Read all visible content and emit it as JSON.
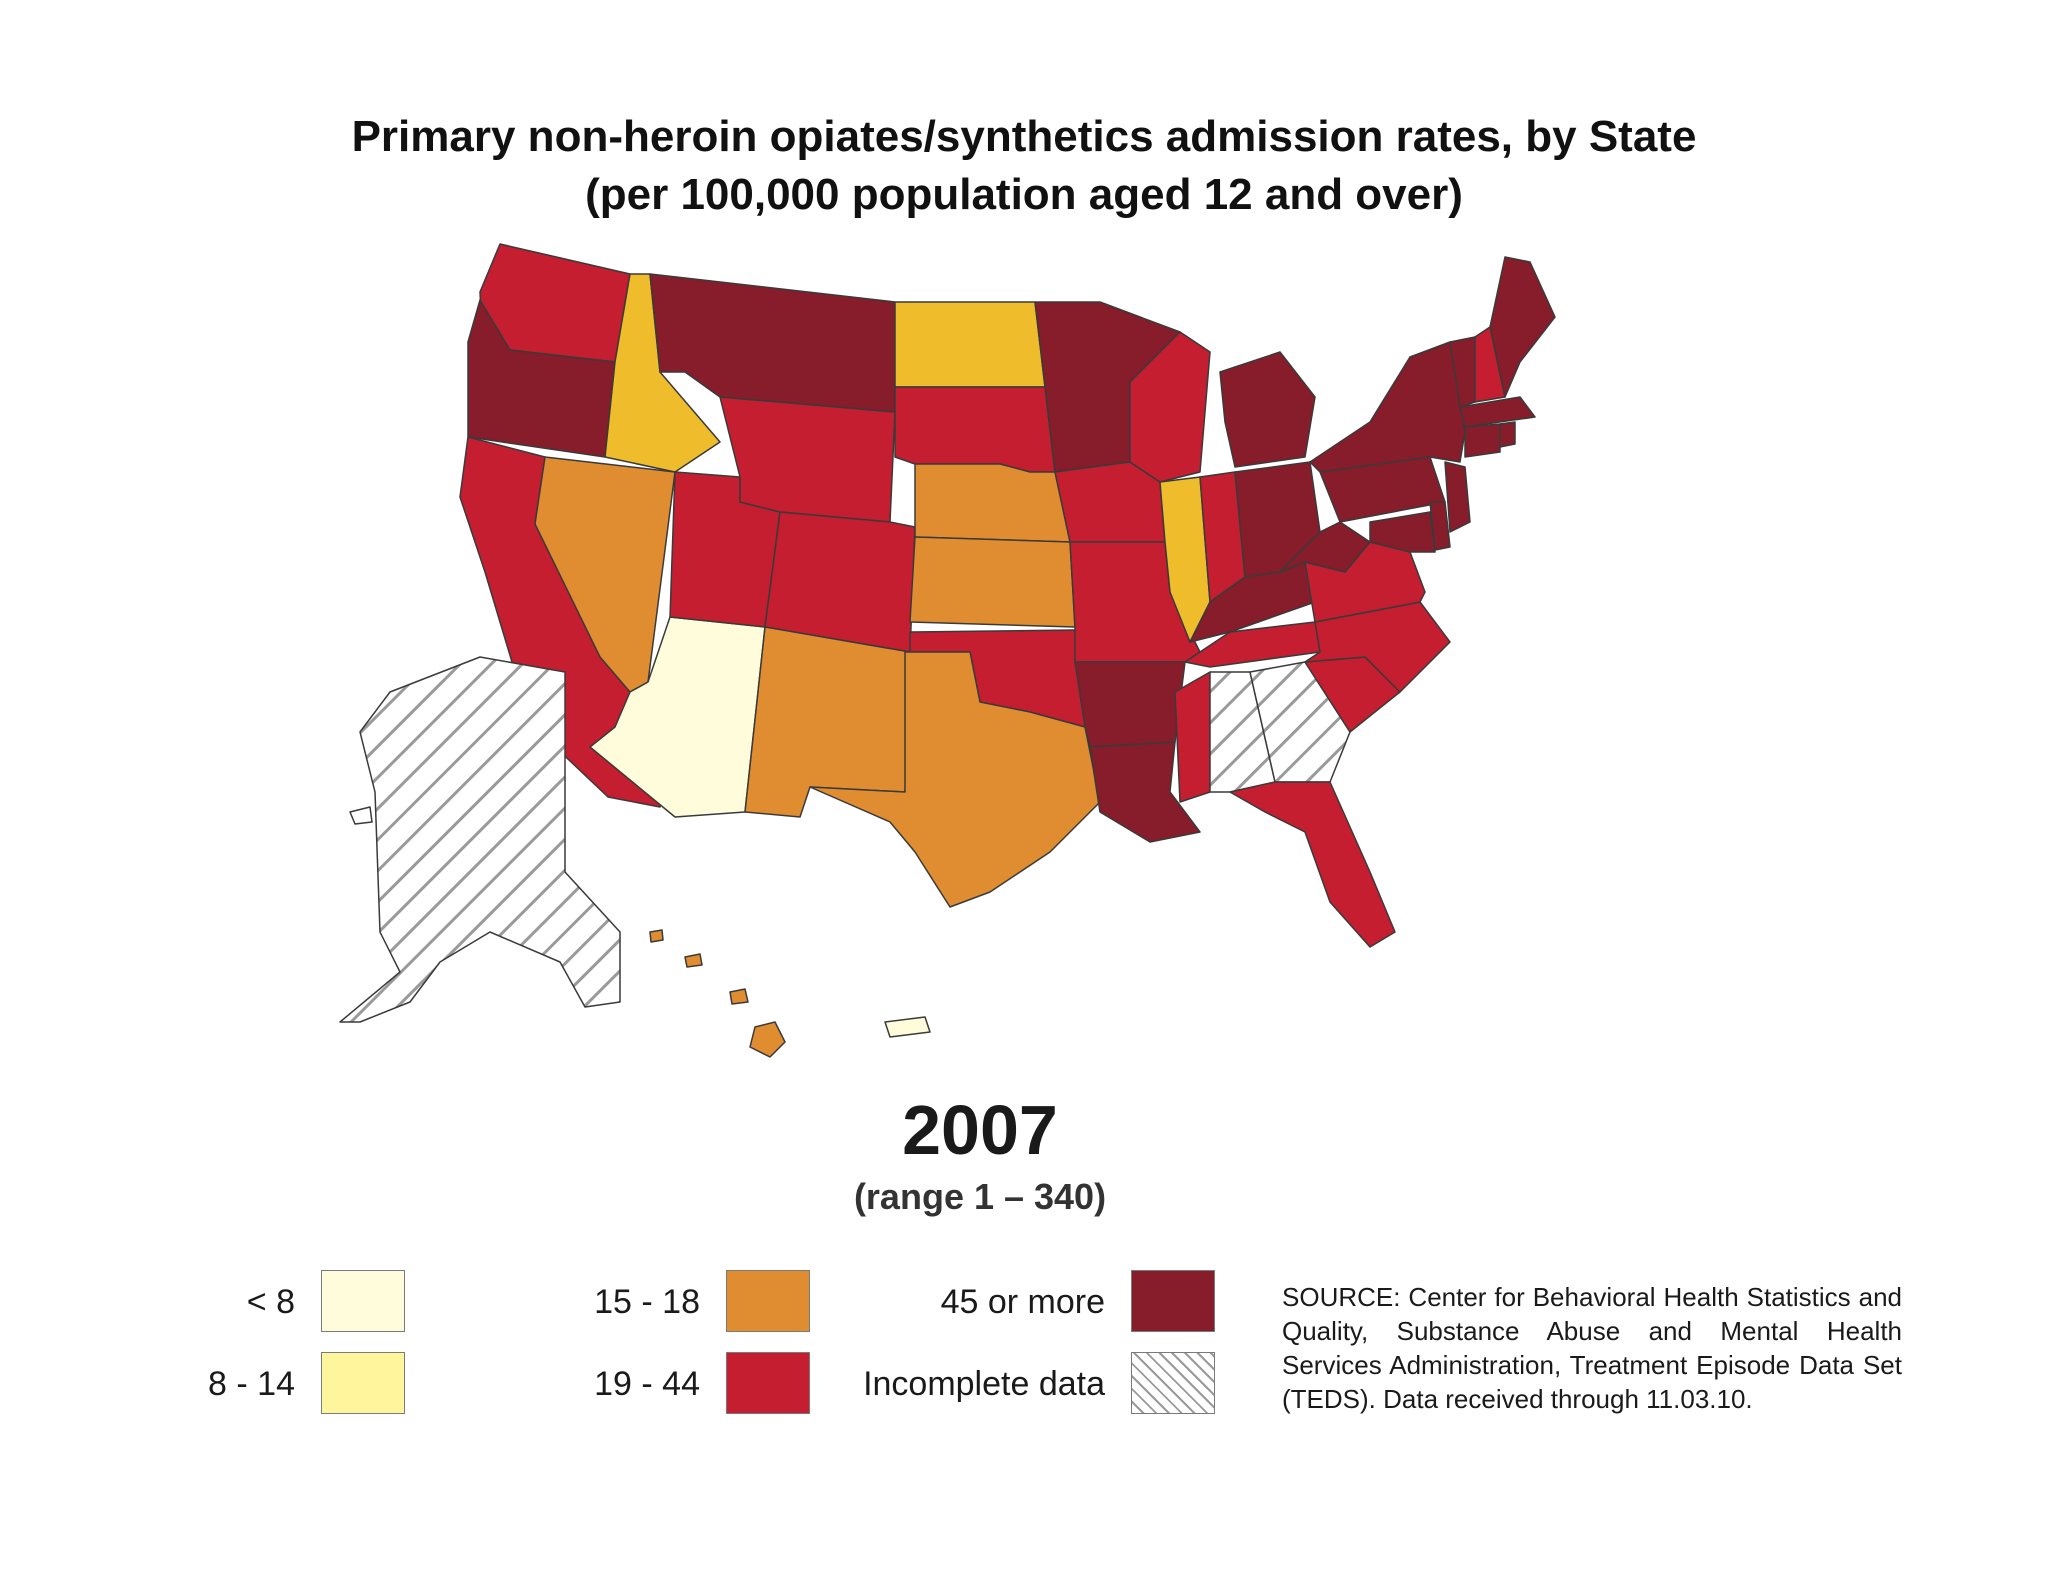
{
  "title": "Primary non-heroin opiates/synthetics admission rates, by State",
  "subtitle": "(per 100,000 population aged 12 and over)",
  "year": "2007",
  "range": "(range 1 – 340)",
  "colors": {
    "lt8": "#fefcda",
    "r8_14": "#fef59c",
    "r15_18": "#e08d31",
    "r19_44": "#c41e30",
    "r45plus": "#871c2a",
    "idnd": "#efbd2c",
    "incomplete_hatch": "#9a9a9a",
    "border": "#3a3a3a"
  },
  "legend": [
    {
      "label": "< 8",
      "color": "#fefcda",
      "hatch": false
    },
    {
      "label": "8 - 14",
      "color": "#fef59c",
      "hatch": false
    },
    {
      "label": "15 - 18",
      "color": "#e08d31",
      "hatch": false
    },
    {
      "label": "19 - 44",
      "color": "#c41e30",
      "hatch": false
    },
    {
      "label": "45 or more",
      "color": "#871c2a",
      "hatch": false
    },
    {
      "label": "Incomplete data",
      "color": "#ffffff",
      "hatch": true
    }
  ],
  "source": "SOURCE: Center for Behavioral Health Statistics and Quality, Substance Abuse and Mental Health Services Administration, Treatment Episode Data Set (TEDS). Data received through 11.03.10."
}
